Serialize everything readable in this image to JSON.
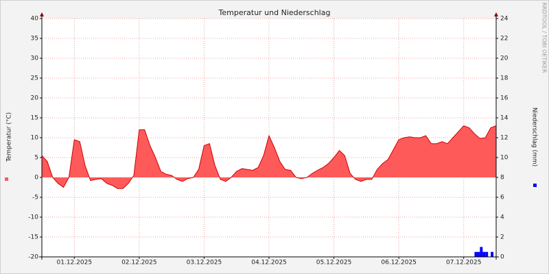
{
  "chart_data": {
    "type": "area",
    "title": "Temperatur und Niederschlag",
    "ylabel": "Temperatur (°C)",
    "y2label": "Niederschlag (mm)",
    "watermark": "RRDTOOL / TOBI OETIKER",
    "xlim": [
      0,
      168
    ],
    "xticks": [
      {
        "value": 12,
        "label": "01.12.2025"
      },
      {
        "value": 36,
        "label": "02.12.2025"
      },
      {
        "value": 60,
        "label": "03.12.2025"
      },
      {
        "value": 84,
        "label": "04.12.2025"
      },
      {
        "value": 108,
        "label": "05.12.2025"
      },
      {
        "value": 132,
        "label": "06.12.2025"
      },
      {
        "value": 156,
        "label": "07.12.2025"
      }
    ],
    "ylim": [
      -20,
      40
    ],
    "yticks": [
      -20,
      -15,
      -10,
      -5,
      0,
      5,
      10,
      15,
      20,
      25,
      30,
      35,
      40
    ],
    "y2lim": [
      0,
      24
    ],
    "y2ticks": [
      0,
      2,
      4,
      6,
      8,
      10,
      12,
      14,
      16,
      18,
      20,
      22,
      24
    ],
    "grid": true,
    "series": [
      {
        "type": "area",
        "color": "#ff5a5a",
        "line_color": "#cc0000",
        "x": [
          0,
          2,
          4,
          6,
          8,
          10,
          12,
          14,
          16,
          18,
          20,
          22,
          24,
          26,
          28,
          30,
          32,
          34,
          36,
          38,
          40,
          42,
          44,
          46,
          48,
          50,
          52,
          54,
          56,
          58,
          60,
          62,
          64,
          66,
          68,
          70,
          72,
          74,
          76,
          78,
          80,
          82,
          84,
          86,
          88,
          90,
          92,
          94,
          96,
          98,
          100,
          102,
          104,
          106,
          108,
          110,
          112,
          114,
          116,
          118,
          120,
          122,
          124,
          126,
          128,
          130,
          132,
          134,
          136,
          138,
          140,
          142,
          144,
          146,
          148,
          150,
          152,
          154,
          156,
          158,
          160,
          162,
          164,
          166,
          168
        ],
        "values": [
          5.5,
          4,
          0,
          -1.5,
          -2.5,
          0,
          9.5,
          9,
          3,
          -0.8,
          -0.5,
          -0.3,
          -1.5,
          -2,
          -2.8,
          -2.8,
          -1.5,
          0.5,
          12,
          12,
          8,
          5,
          1.5,
          0.8,
          0.5,
          -0.5,
          -1,
          -0.3,
          0,
          2,
          8,
          8.5,
          3,
          -0.5,
          -1,
          0,
          1.5,
          2.2,
          2,
          1.8,
          2.5,
          5.5,
          10.5,
          7.5,
          4,
          2,
          1.8,
          0,
          -0.3,
          0,
          1,
          1.8,
          2.5,
          3.5,
          5,
          6.8,
          5.5,
          1,
          -0.5,
          -1,
          -0.5,
          -0.5,
          2,
          3.5,
          4.5,
          7,
          9.5,
          10,
          10.2,
          10,
          10,
          10.5,
          8.5,
          8.5,
          9,
          8.5,
          10,
          11.5,
          13,
          12.5,
          11,
          9.8,
          10,
          12.5,
          13
        ]
      },
      {
        "type": "bar",
        "axis": "y2",
        "color": "#0000ff",
        "x": [
          160,
          161,
          162,
          163,
          164,
          166
        ],
        "values": [
          0.5,
          0.5,
          1,
          0.5,
          0.5,
          0.5
        ]
      }
    ]
  }
}
